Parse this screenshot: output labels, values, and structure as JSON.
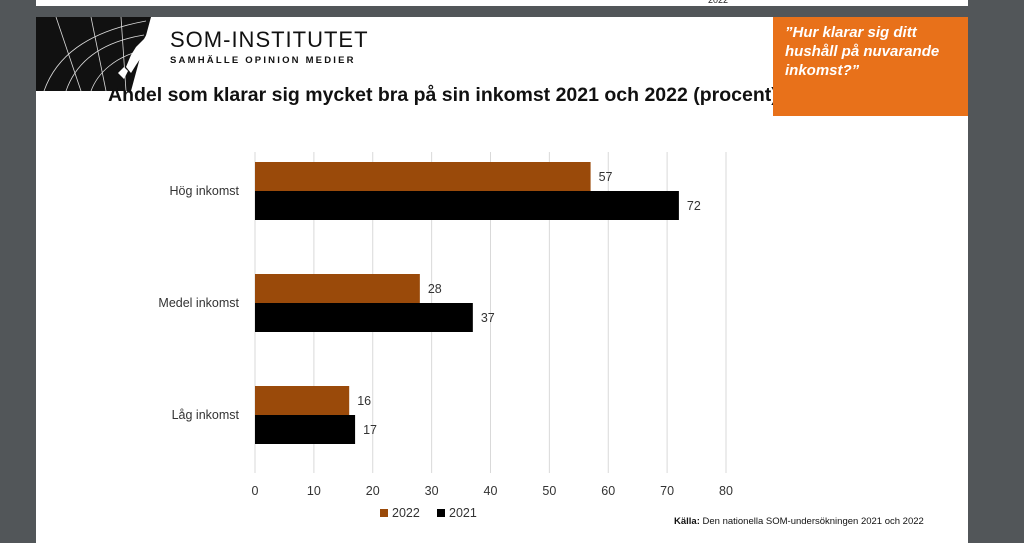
{
  "prev_slide": {
    "source_tail": "2022"
  },
  "brand": {
    "name": "SOM-INSTITUTET",
    "tagline": "SAMHÄLLE OPINION MEDIER"
  },
  "quote": "”Hur klarar sig ditt hushåll på nuvarande inkomst?”",
  "source": {
    "label": "Källa:",
    "text": "Den nationella SOM-undersökningen 2021 och 2022"
  },
  "colors": {
    "series_2022": "#9a4a0a",
    "series_2021": "#000000",
    "accent": "#e8711a",
    "grid": "#d9d9d9"
  },
  "chart_data": {
    "type": "bar",
    "orientation": "horizontal",
    "title": "Andel som klarar sig mycket bra på sin inkomst 2021 och 2022 (procent)",
    "categories": [
      "Hög inkomst",
      "Medel inkomst",
      "Låg inkomst"
    ],
    "series": [
      {
        "name": "2022",
        "values": [
          57,
          28,
          16
        ]
      },
      {
        "name": "2021",
        "values": [
          72,
          37,
          17
        ]
      }
    ],
    "xlim": [
      0,
      80
    ],
    "xticks": [
      0,
      10,
      20,
      30,
      40,
      50,
      60,
      70,
      80
    ],
    "grid": true,
    "legend_position": "bottom"
  }
}
